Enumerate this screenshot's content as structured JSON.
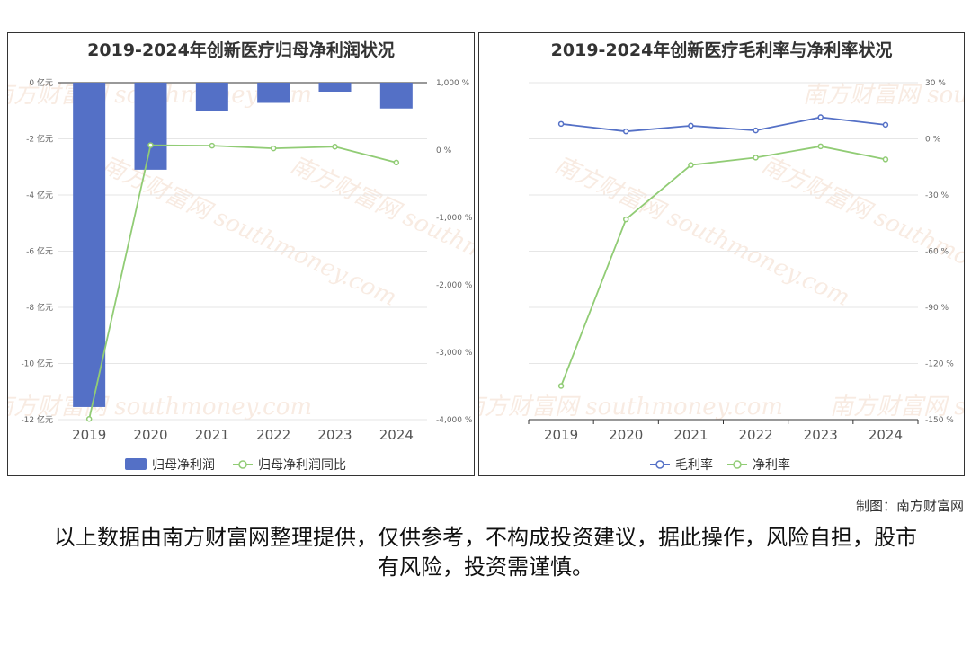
{
  "chart_data": [
    {
      "type": "bar",
      "title": "2019-2024年创新医疗归母净利润状况",
      "categories": [
        "2019",
        "2020",
        "2021",
        "2022",
        "2023",
        "2024"
      ],
      "y_left": {
        "ticks": [
          "0 亿元",
          "-2 亿元",
          "-4 亿元",
          "-6 亿元",
          "-8 亿元",
          "-10 亿元",
          "-12 亿元"
        ],
        "range": [
          -12,
          0
        ]
      },
      "y_right": {
        "ticks": [
          "1,000 %",
          "0 %",
          "-1,000 %",
          "-2,000 %",
          "-3,000 %",
          "-4,000 %"
        ],
        "range": [
          -4000,
          1000
        ]
      },
      "series": [
        {
          "name": "归母净利润",
          "type": "bar",
          "axis": "left",
          "color": "#5470c6",
          "values": [
            -11.55,
            -3.1,
            -1.0,
            -0.72,
            -0.32,
            -0.92
          ]
        },
        {
          "name": "归母净利润同比",
          "type": "line",
          "axis": "right",
          "color": "#91cc75",
          "values": [
            -3990,
            72,
            65,
            25,
            50,
            -185
          ]
        }
      ],
      "legend": "bottom",
      "grid": true
    },
    {
      "type": "line",
      "title": "2019-2024年创新医疗毛利率与净利率状况",
      "categories": [
        "2019",
        "2020",
        "2021",
        "2022",
        "2023",
        "2024"
      ],
      "y_right": {
        "ticks": [
          "30 %",
          "0 %",
          "-30 %",
          "-60 %",
          "-90 %",
          "-120 %",
          "-150 %"
        ],
        "range": [
          -150,
          30
        ]
      },
      "series": [
        {
          "name": "毛利率",
          "color": "#5470c6",
          "values": [
            8,
            4,
            7,
            4.5,
            11.5,
            7.5
          ]
        },
        {
          "name": "净利率",
          "color": "#91cc75",
          "values": [
            -132,
            -43,
            -14,
            -10,
            -4,
            -11
          ]
        }
      ],
      "legend": "bottom",
      "grid": true
    }
  ],
  "watermark": {
    "cn": "南方财富网",
    "en": "southmoney.com"
  },
  "footer": {
    "credit": "制图：南方财富网",
    "disclaimer": "以上数据由南方财富网整理提供，仅供参考，不构成投资建议，据此操作，风险自担，股市有风险，投资需谨慎。"
  }
}
